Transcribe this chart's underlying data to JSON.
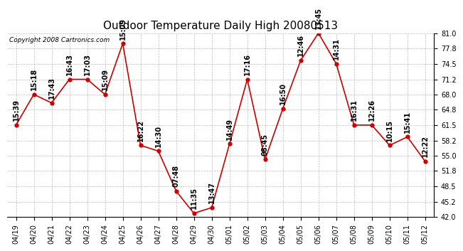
{
  "title": "Outdoor Temperature Daily High 20080513",
  "copyright": "Copyright 2008 Cartronics.com",
  "x_labels": [
    "04/19",
    "04/20",
    "04/21",
    "04/22",
    "04/23",
    "04/24",
    "04/25",
    "04/26",
    "04/27",
    "04/28",
    "04/29",
    "04/30",
    "05/01",
    "05/02",
    "05/03",
    "05/04",
    "05/05",
    "05/06",
    "05/07",
    "05/08",
    "05/09",
    "05/10",
    "05/11",
    "05/12"
  ],
  "y_values": [
    61.5,
    68.0,
    66.2,
    71.2,
    71.2,
    68.0,
    78.8,
    57.2,
    56.0,
    47.5,
    42.8,
    44.0,
    57.5,
    71.2,
    54.2,
    65.0,
    75.2,
    81.0,
    74.5,
    61.5,
    61.5,
    57.2,
    59.0,
    53.8
  ],
  "time_labels": [
    "15:39",
    "15:18",
    "17:43",
    "16:43",
    "17:03",
    "15:09",
    "15:09",
    "16:22",
    "14:30",
    "07:48",
    "11:35",
    "13:47",
    "14:49",
    "17:16",
    "08:45",
    "16:50",
    "12:46",
    "13:45",
    "14:31",
    "16:31",
    "12:26",
    "10:15",
    "15:41",
    "12:22"
  ],
  "line_color": "#cc0000",
  "marker_color": "#cc0000",
  "bg_color": "#ffffff",
  "grid_color": "#bbbbbb",
  "title_fontsize": 11,
  "tick_fontsize": 7,
  "label_fontsize": 7,
  "y_min": 42.0,
  "y_max": 81.0,
  "y_ticks": [
    42.0,
    45.2,
    48.5,
    51.8,
    55.0,
    58.2,
    61.5,
    64.8,
    68.0,
    71.2,
    74.5,
    77.8,
    81.0
  ]
}
